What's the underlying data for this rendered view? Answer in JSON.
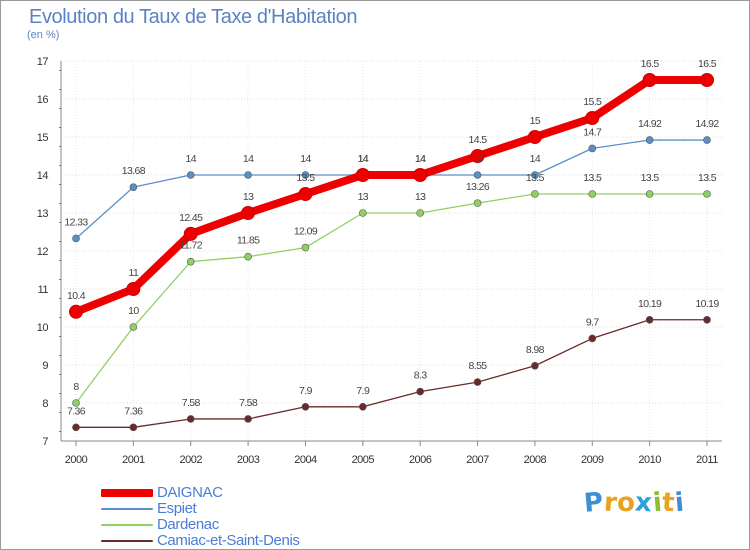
{
  "header": {
    "title": "Evolution du Taux de Taxe d'Habitation",
    "subtitle": "(en %)"
  },
  "logo": {
    "text": "Proxiti",
    "letters": [
      "P",
      "r",
      "o",
      "x",
      "i",
      "t",
      "i"
    ],
    "colors": [
      "#3e8ed0",
      "#e8a21f",
      "#e8a21f",
      "#2f9fd8",
      "#8bbd3a",
      "#e8a21f",
      "#3e8ed0"
    ]
  },
  "chart_data": {
    "type": "line",
    "title": "Evolution du Taux de Taxe d'Habitation",
    "ylabel": "(en %)",
    "x": [
      "2000",
      "2001",
      "2002",
      "2003",
      "2004",
      "2005",
      "2006",
      "2007",
      "2008",
      "2009",
      "2010",
      "2011"
    ],
    "ylim": [
      7,
      17
    ],
    "yticks": [
      "7",
      "8",
      "9",
      "10",
      "11",
      "12",
      "13",
      "14",
      "15",
      "16",
      "17"
    ],
    "grid": true,
    "legend_position": "bottom-left",
    "series": [
      {
        "name": "DAIGNAC",
        "color": "#ee0000",
        "values": [
          10.4,
          11,
          12.45,
          13,
          13.5,
          14,
          14,
          14.5,
          15,
          15.5,
          16.5,
          16.5
        ],
        "labels": [
          "10.4",
          "11",
          "12.45",
          "13",
          "13.5",
          "14",
          "14",
          "14.5",
          "15",
          "15.5",
          "16.5",
          "16.5"
        ]
      },
      {
        "name": "Espiet",
        "color": "#5b8fc8",
        "values": [
          12.33,
          13.68,
          14,
          14,
          14,
          14,
          14,
          14,
          14,
          14.7,
          14.92,
          14.92
        ],
        "labels": [
          "12.33",
          "13.68",
          "14",
          "14",
          "14",
          "14",
          "14",
          "14",
          "14",
          "14.7",
          "14.92",
          "14.92"
        ]
      },
      {
        "name": "Dardenac",
        "color": "#90d060",
        "values": [
          8,
          10,
          11.72,
          11.85,
          12.09,
          13,
          13,
          13.26,
          13.5,
          13.5,
          13.5,
          13.5
        ],
        "labels": [
          "8",
          "10",
          "11.72",
          "11.85",
          "12.09",
          "13",
          "13",
          "13.26",
          "13.5",
          "13.5",
          "13.5",
          "13.5"
        ]
      },
      {
        "name": "Camiac-et-Saint-Denis",
        "color": "#6b2a2a",
        "values": [
          7.36,
          7.36,
          7.58,
          7.58,
          7.9,
          7.9,
          8.3,
          8.55,
          8.98,
          9.7,
          10.19,
          10.19
        ],
        "labels": [
          "7.36",
          "7.36",
          "7.58",
          "7.58",
          "7.9",
          "7.9",
          "8.3",
          "8.55",
          "8.98",
          "9.7",
          "10.19",
          "10.19"
        ]
      }
    ]
  }
}
